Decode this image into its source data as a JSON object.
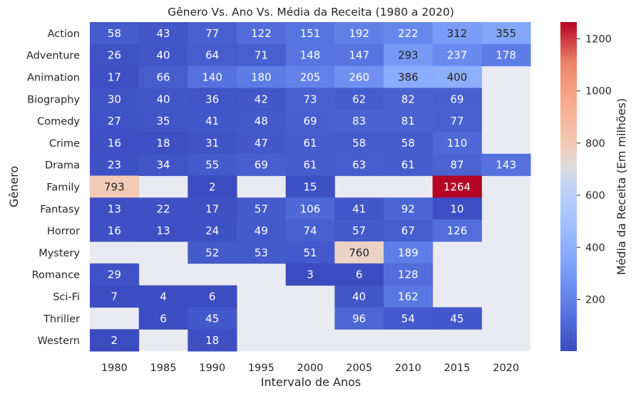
{
  "chart_data": {
    "type": "heatmap",
    "title": "Gênero Vs. Ano Vs. Média da Receita (1980 a 2020)",
    "xlabel": "Intervalo de Anos",
    "ylabel": "Gênero",
    "x": [
      "1980",
      "1985",
      "1990",
      "1995",
      "2000",
      "2005",
      "2010",
      "2015",
      "2020"
    ],
    "y": [
      "Action",
      "Adventure",
      "Animation",
      "Biography",
      "Comedy",
      "Crime",
      "Drama",
      "Family",
      "Fantasy",
      "Horror",
      "Mystery",
      "Romance",
      "Sci-Fi",
      "Thriller",
      "Western"
    ],
    "values": [
      [
        58,
        43,
        77,
        122,
        151,
        192,
        222,
        312,
        355
      ],
      [
        26,
        40,
        64,
        71,
        148,
        147,
        293,
        237,
        178
      ],
      [
        17,
        66,
        140,
        180,
        205,
        260,
        386,
        400,
        null
      ],
      [
        30,
        40,
        36,
        42,
        73,
        62,
        82,
        69,
        null
      ],
      [
        27,
        35,
        41,
        48,
        69,
        83,
        81,
        77,
        null
      ],
      [
        16,
        18,
        31,
        47,
        61,
        58,
        58,
        110,
        null
      ],
      [
        23,
        34,
        55,
        69,
        61,
        63,
        61,
        87,
        143
      ],
      [
        793,
        null,
        2,
        null,
        15,
        null,
        null,
        1264,
        null
      ],
      [
        13,
        22,
        17,
        57,
        106,
        41,
        92,
        10,
        null
      ],
      [
        16,
        13,
        24,
        49,
        74,
        57,
        67,
        126,
        null
      ],
      [
        null,
        null,
        52,
        53,
        51,
        760,
        189,
        null,
        null
      ],
      [
        29,
        null,
        null,
        null,
        3,
        6,
        128,
        null,
        null
      ],
      [
        7,
        4,
        6,
        null,
        null,
        40,
        162,
        null,
        null
      ],
      [
        null,
        6,
        45,
        null,
        null,
        96,
        54,
        45,
        null
      ],
      [
        2,
        null,
        18,
        null,
        null,
        null,
        null,
        null,
        null
      ]
    ],
    "colormap": "coolwarm",
    "vmin": 2,
    "vmax": 1264,
    "missing_color": "#eaeaf2",
    "colorbar": {
      "label": "Média da Receita (Em milhões)",
      "ticks": [
        200,
        400,
        600,
        800,
        1000,
        1200
      ]
    }
  }
}
